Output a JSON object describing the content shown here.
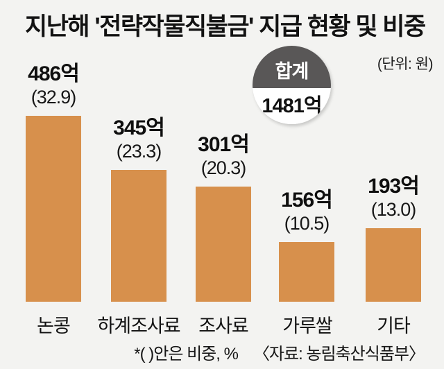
{
  "chart_data": {
    "type": "bar",
    "title": "지난해 '전략작물직불금' 지급 현황 및 비중",
    "unit_label": "(단위: 원)",
    "categories": [
      "논콩",
      "하계조사료",
      "조사료",
      "가루쌀",
      "기타"
    ],
    "values": [
      486,
      345,
      301,
      156,
      193
    ],
    "value_labels": [
      "486억",
      "345억",
      "301억",
      "156억",
      "193억"
    ],
    "percents": [
      32.9,
      23.3,
      20.3,
      10.5,
      13.0
    ],
    "percent_labels": [
      "(32.9)",
      "(23.3)",
      "(20.3)",
      "(10.5)",
      "(13.0)"
    ],
    "total": {
      "label": "합계",
      "value": 1481,
      "value_label": "1481억",
      "badge_color": "#595757"
    },
    "bar_color": "#d7904c",
    "background_color": "#f3f3f1",
    "footnote": "*(  )안은 비중, %",
    "source": "〈자료: 농림축산식품부〉",
    "ylim": [
      0,
      486
    ],
    "grid": false,
    "legend": "none"
  }
}
